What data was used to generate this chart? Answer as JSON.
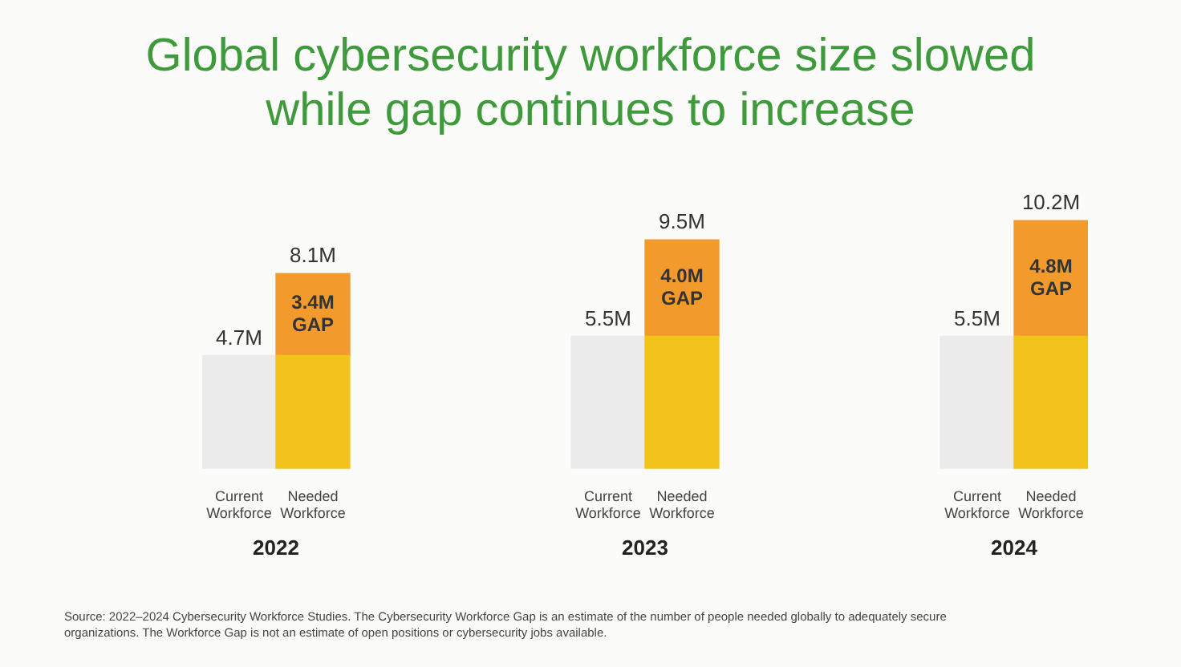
{
  "chart_data": {
    "type": "bar",
    "title": "Global cybersecurity workforce size slowed while gap continues to increase",
    "categories": [
      "Current Workforce",
      "Needed Workforce",
      null,
      null,
      null,
      "Current Workforce",
      "Needed Workforce",
      null,
      null,
      null,
      "Current Workforce",
      "Needed Workforce"
    ],
    "stacked": true,
    "series": [
      {
        "colors": [
          "#ebebeb",
          "#f2c31b",
          null,
          null,
          null,
          "#ebebeb",
          "#f2c31b",
          null,
          null,
          null,
          "#ebebeb",
          "#f2c31b"
        ],
        "values": [
          4.7,
          4.7,
          null,
          null,
          null,
          5.5,
          5.5,
          null,
          null,
          null,
          5.5,
          5.5
        ],
        "value_labels": [
          "4.7M",
          null,
          null,
          null,
          null,
          "5.5M",
          null,
          null,
          null,
          null,
          "5.5M",
          null
        ]
      },
      {
        "color": "#f39a2c",
        "values": [
          null,
          3.4,
          null,
          null,
          null,
          null,
          4.0,
          null,
          null,
          null,
          null,
          4.8
        ],
        "value_labels": [
          null,
          "3.4M GAP",
          null,
          null,
          null,
          null,
          "4.0M GAP",
          null,
          null,
          null,
          null,
          "4.8M GAP"
        ]
      }
    ],
    "totals": [
      null,
      "8.1M",
      null,
      null,
      null,
      null,
      "9.5M",
      null,
      null,
      null,
      null,
      "10.2M"
    ],
    "annotations": [
      "2022",
      "2023",
      "2024",
      "Source: 2022–2024 Cybersecurity Workforce Studies. The Cybersecurity Workforce Gap is an estimate of the number of people needed globally to adequately secure organizations. The Workforce Gap is not an estimate of open positions or cybersecurity jobs available."
    ]
  }
}
